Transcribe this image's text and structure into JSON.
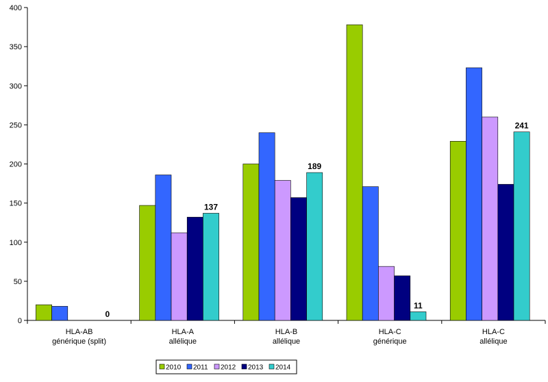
{
  "chart_data": {
    "type": "bar",
    "title": "",
    "xlabel": "",
    "ylabel": "",
    "ylim": [
      0,
      400
    ],
    "yticks": [
      0,
      50,
      100,
      150,
      200,
      250,
      300,
      350,
      400
    ],
    "grid": false,
    "legend_position": "bottom",
    "categories": [
      [
        "HLA-AB",
        "générique (split)"
      ],
      [
        "HLA-A",
        "allélique"
      ],
      [
        "HLA-B",
        "allélique"
      ],
      [
        "HLA-C",
        "générique"
      ],
      [
        "HLA-C",
        "allélique"
      ]
    ],
    "series": [
      {
        "name": "2010",
        "color": "#99cc00",
        "values": [
          20,
          147,
          200,
          378,
          229
        ]
      },
      {
        "name": "2011",
        "color": "#3366ff",
        "values": [
          18,
          186,
          240,
          171,
          323
        ]
      },
      {
        "name": "2012",
        "color": "#cc99ff",
        "values": [
          0,
          112,
          179,
          69,
          260
        ]
      },
      {
        "name": "2013",
        "color": "#000080",
        "values": [
          0,
          132,
          157,
          57,
          174
        ]
      },
      {
        "name": "2014",
        "color": "#33cccc",
        "values": [
          0,
          137,
          189,
          11,
          241
        ]
      }
    ],
    "data_labels": [
      {
        "category": 0,
        "series": 4,
        "text": "0"
      },
      {
        "category": 1,
        "series": 4,
        "text": "137"
      },
      {
        "category": 2,
        "series": 4,
        "text": "189"
      },
      {
        "category": 3,
        "series": 4,
        "text": "11"
      },
      {
        "category": 4,
        "series": 4,
        "text": "241"
      }
    ]
  }
}
